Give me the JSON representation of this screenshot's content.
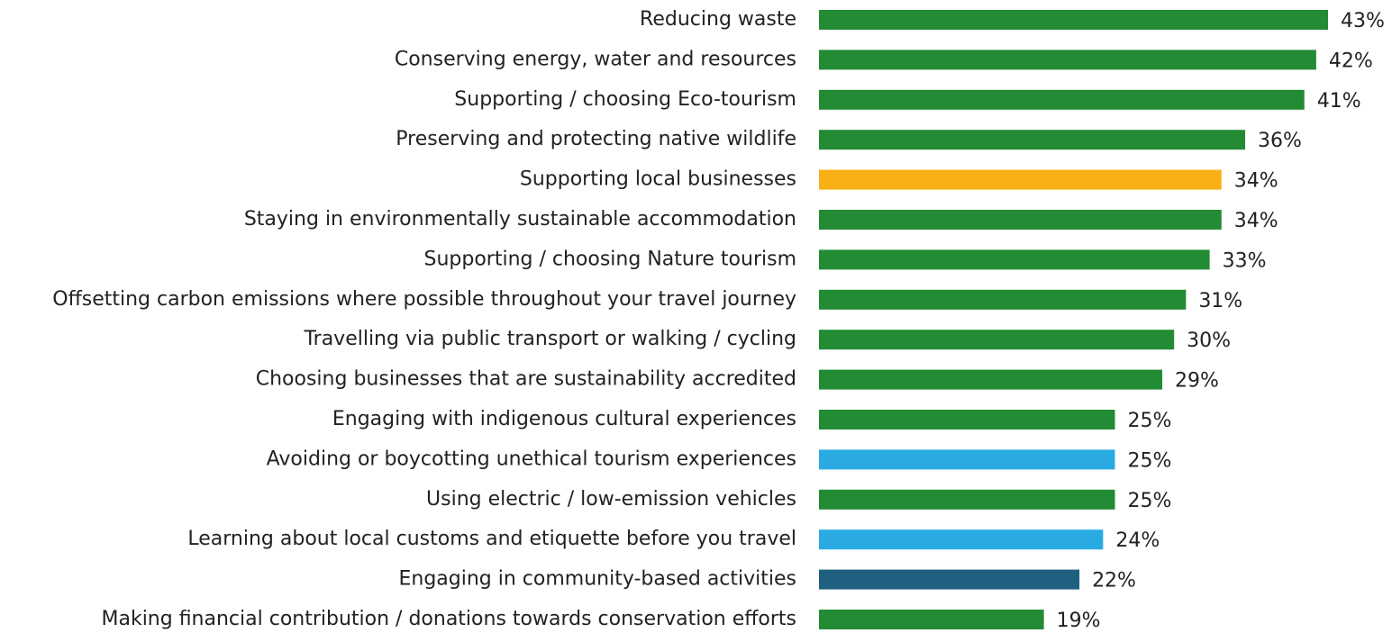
{
  "chart_data": {
    "type": "hbar",
    "categories": [
      "Reducing waste",
      "Conserving energy, water and resources",
      "Supporting / choosing Eco-tourism",
      "Preserving and protecting native wildlife",
      "Supporting local businesses",
      "Staying in environmentally sustainable accommodation",
      "Supporting / choosing Nature tourism",
      "Offsetting carbon emissions where possible throughout your travel journey",
      "Travelling via public transport or walking / cycling",
      "Choosing businesses that are sustainability accredited",
      "Engaging with indigenous cultural experiences",
      "Avoiding or boycotting unethical tourism experiences",
      "Using electric / low-emission vehicles",
      "Learning about local customs and etiquette before you travel",
      "Engaging in community-based activities",
      "Making financial contribution / donations towards conservation efforts"
    ],
    "values": [
      43,
      42,
      41,
      36,
      34,
      34,
      33,
      31,
      30,
      29,
      25,
      25,
      25,
      24,
      22,
      19
    ],
    "value_labels": [
      "43%",
      "42%",
      "41%",
      "36%",
      "34%",
      "34%",
      "33%",
      "31%",
      "30%",
      "29%",
      "25%",
      "25%",
      "25%",
      "24%",
      "22%",
      "19%"
    ],
    "colors": [
      "#228b34",
      "#228b34",
      "#228b34",
      "#228b34",
      "#f8b015",
      "#228b34",
      "#228b34",
      "#228b34",
      "#228b34",
      "#228b34",
      "#228b34",
      "#29abe2",
      "#228b34",
      "#29abe2",
      "#1f5f80",
      "#228b34"
    ]
  }
}
